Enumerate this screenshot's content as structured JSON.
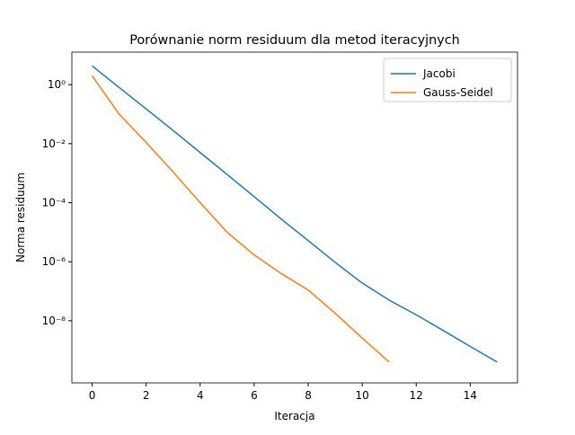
{
  "chart_data": {
    "type": "line",
    "title": "Porównanie norm residuum dla metod iteracyjnych",
    "xlabel": "Iteracja",
    "ylabel": "Norma residuum",
    "log_y": true,
    "legend": "upper right",
    "xlim": [
      -0.75,
      15.75
    ],
    "xticks": [
      0,
      2,
      4,
      6,
      8,
      10,
      12,
      14
    ],
    "ylim": [
      7.9e-11,
      12.6
    ],
    "yticks": [
      {
        "value": 1,
        "label": "10⁰"
      },
      {
        "value": 0.01,
        "label": "10⁻²"
      },
      {
        "value": 0.0001,
        "label": "10⁻⁴"
      },
      {
        "value": 1e-06,
        "label": "10⁻⁶"
      },
      {
        "value": 1e-08,
        "label": "10⁻⁸"
      }
    ],
    "series": [
      {
        "name": "Jacobi",
        "color": "#1f77b4",
        "x": [
          0,
          1,
          2,
          3,
          4,
          5,
          6,
          7,
          8,
          9,
          10,
          11,
          12,
          13,
          14,
          15
        ],
        "values": [
          4.3,
          0.8,
          0.15,
          0.028,
          0.005,
          0.0009,
          0.00016,
          2.8e-05,
          5.2e-06,
          9.5e-07,
          1.9e-07,
          5e-08,
          1.6e-08,
          4.7e-09,
          1.35e-09,
          4e-10
        ]
      },
      {
        "name": "Gauss-Seidel",
        "color": "#ff7f0e",
        "x": [
          0,
          1,
          2,
          3,
          4,
          5,
          6,
          7,
          8,
          9,
          10,
          11
        ],
        "values": [
          2,
          0.1,
          0.011,
          0.0011,
          0.0001,
          1e-05,
          1.7e-06,
          4e-07,
          1.1e-07,
          1.8e-08,
          2.6e-09,
          4e-10
        ]
      }
    ]
  }
}
